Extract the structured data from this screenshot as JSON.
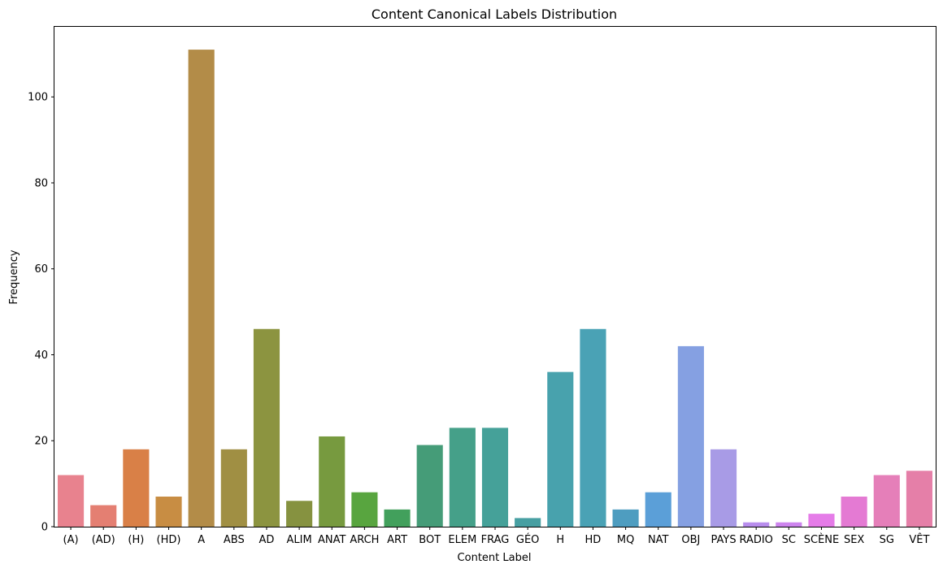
{
  "chart_data": {
    "type": "bar",
    "title": "Content Canonical Labels Distribution",
    "xlabel": "Content Label",
    "ylabel": "Frequency",
    "ylim": [
      0,
      116.5
    ],
    "yticks": [
      0,
      20,
      40,
      60,
      80,
      100
    ],
    "grid": false,
    "legend": "none",
    "categories": [
      "(A)",
      "(AD)",
      "(H)",
      "(HD)",
      "A",
      "ABS",
      "AD",
      "ALIM",
      "ANAT",
      "ARCH",
      "ART",
      "BOT",
      "ELEM",
      "FRAG",
      "GÉO",
      "H",
      "HD",
      "MQ",
      "NAT",
      "OBJ",
      "PAYS",
      "RADIO",
      "SC",
      "SCÈNE",
      "SEX",
      "SG",
      "VÊT"
    ],
    "values": [
      12,
      5,
      18,
      7,
      111,
      18,
      46,
      6,
      21,
      8,
      4,
      19,
      23,
      23,
      2,
      36,
      46,
      4,
      8,
      42,
      18,
      1,
      1,
      3,
      7,
      12,
      13
    ],
    "colors": [
      "#e8828e",
      "#e47f72",
      "#d98047",
      "#c88d43",
      "#b38c48",
      "#a08f43",
      "#8c9440",
      "#869240",
      "#779a3f",
      "#58a53f",
      "#42a05c",
      "#459c78",
      "#45a089",
      "#45a199",
      "#479fa2",
      "#48a2ad",
      "#4aa2b5",
      "#4e9dc0",
      "#5b9fd8",
      "#85a0e2",
      "#a89be6",
      "#b88ded",
      "#cd84ee",
      "#e57ce8",
      "#e47ad3",
      "#e57fb9",
      "#e57fa8"
    ]
  }
}
